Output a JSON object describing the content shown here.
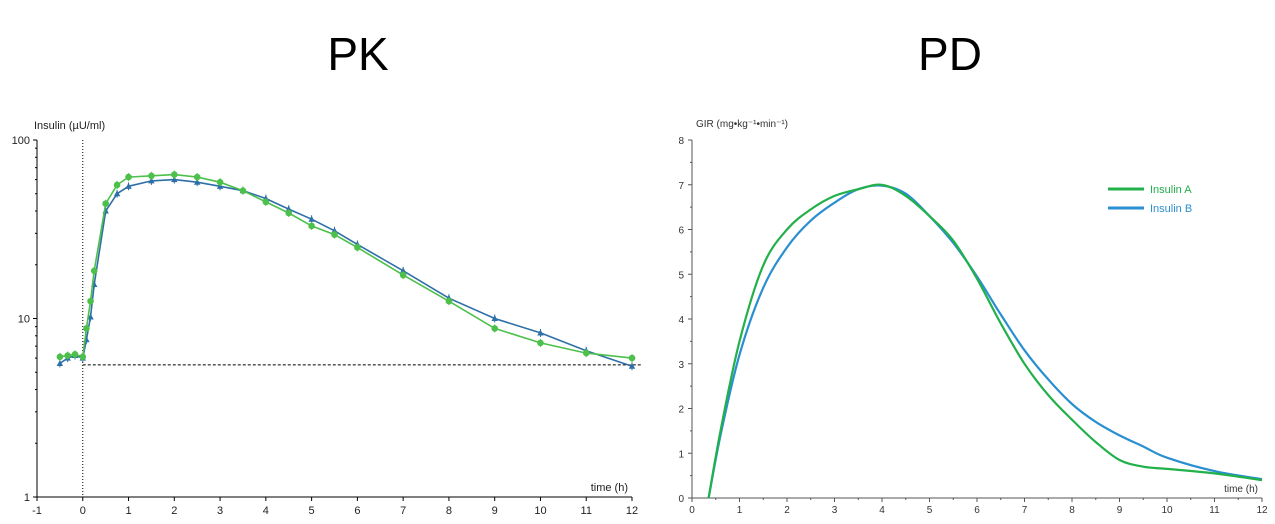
{
  "chart_data": [
    {
      "panel_title": "PK",
      "type": "line",
      "ylabel": "Insulin (µU/ml)",
      "xlabel": "time (h)",
      "yscale": "log",
      "ylim": [
        1,
        100
      ],
      "xlim": [
        -1,
        12
      ],
      "x_ticks": [
        "-1",
        "0",
        "1",
        "2",
        "3",
        "4",
        "5",
        "6",
        "7",
        "8",
        "9",
        "10",
        "11",
        "12"
      ],
      "y_ticks": [
        "1",
        "10",
        "100"
      ],
      "baseline": 5.5,
      "series": [
        {
          "color": "#2e6fa8",
          "marker": "triangle",
          "x": [
            -0.5,
            -0.33,
            -0.17,
            0,
            0.08,
            0.17,
            0.25,
            0.5,
            0.75,
            1,
            1.5,
            2,
            2.5,
            3,
            3.5,
            4,
            4.5,
            5,
            5.5,
            6,
            7,
            8,
            9,
            10,
            11,
            12
          ],
          "y": [
            5.6,
            6.0,
            6.2,
            6.0,
            7.6,
            10.2,
            15.5,
            40,
            50,
            55,
            59,
            60,
            58,
            55,
            52,
            47,
            41,
            36,
            31,
            26,
            18.5,
            13,
            10,
            8.3,
            6.6,
            5.4
          ]
        },
        {
          "color": "#4cc04a",
          "marker": "circle",
          "x": [
            -0.5,
            -0.33,
            -0.17,
            0,
            0.08,
            0.17,
            0.25,
            0.5,
            0.75,
            1,
            1.5,
            2,
            2.5,
            3,
            3.5,
            4,
            4.5,
            5,
            5.5,
            6,
            7,
            8,
            9,
            10,
            11,
            12
          ],
          "y": [
            6.1,
            6.2,
            6.3,
            6.1,
            8.8,
            12.5,
            18.5,
            44,
            56,
            62,
            63,
            64,
            62,
            58,
            52,
            45,
            39,
            33,
            29.5,
            25,
            17.5,
            12.5,
            8.8,
            7.3,
            6.4,
            6.0
          ]
        }
      ]
    },
    {
      "panel_title": "PD",
      "type": "line",
      "ylabel": "GIR (mg•kg⁻¹•min⁻¹)",
      "xlabel": "time (h)",
      "xlim": [
        0,
        12
      ],
      "ylim": [
        0,
        8
      ],
      "x_ticks": [
        "0",
        "1",
        "2",
        "3",
        "4",
        "5",
        "6",
        "7",
        "8",
        "9",
        "10",
        "11",
        "12"
      ],
      "y_ticks": [
        "0",
        "1",
        "2",
        "3",
        "4",
        "5",
        "6",
        "7",
        "8"
      ],
      "legend_position": "top-right",
      "series": [
        {
          "name": "Insulin A",
          "color": "#22b04a",
          "x": [
            0.35,
            0.6,
            1,
            1.5,
            2,
            2.5,
            3,
            3.5,
            4,
            4.5,
            5,
            5.5,
            6,
            6.5,
            7,
            7.5,
            8,
            8.5,
            9,
            9.5,
            10,
            11,
            12
          ],
          "y": [
            0,
            1.5,
            3.5,
            5.2,
            6.0,
            6.45,
            6.75,
            6.9,
            7.0,
            6.75,
            6.3,
            5.75,
            4.9,
            3.9,
            3.0,
            2.3,
            1.75,
            1.25,
            0.85,
            0.7,
            0.65,
            0.55,
            0.4
          ]
        },
        {
          "name": "Insulin B",
          "color": "#2a8fd0",
          "x": [
            0.35,
            0.6,
            1,
            1.5,
            2,
            2.5,
            3,
            3.5,
            4,
            4.5,
            5,
            5.5,
            6,
            6.5,
            7,
            7.5,
            8,
            8.5,
            9,
            9.5,
            10,
            11,
            12
          ],
          "y": [
            0,
            1.4,
            3.2,
            4.7,
            5.6,
            6.2,
            6.6,
            6.9,
            6.98,
            6.8,
            6.3,
            5.7,
            4.95,
            4.1,
            3.3,
            2.65,
            2.1,
            1.7,
            1.4,
            1.15,
            0.9,
            0.6,
            0.42
          ]
        }
      ]
    }
  ]
}
